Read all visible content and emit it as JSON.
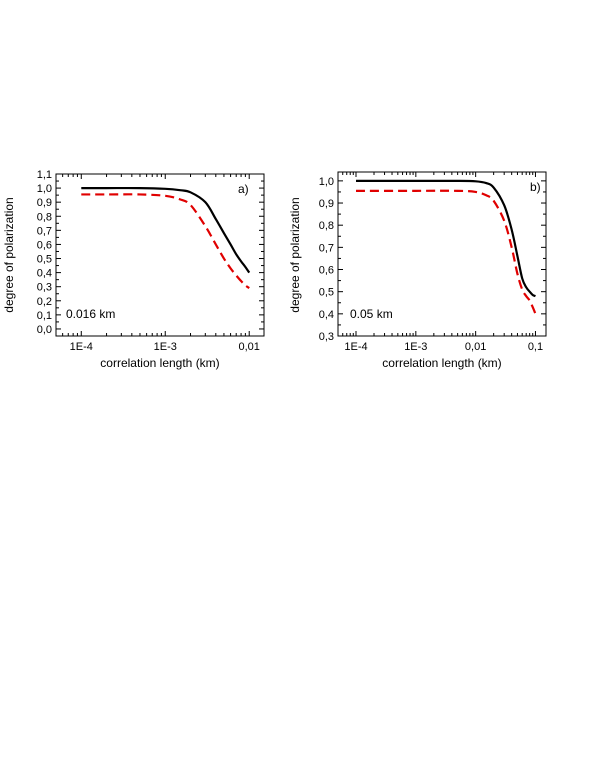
{
  "chart_data": [
    {
      "type": "line",
      "panel_label": "a)",
      "annotation": "0.016 km",
      "xlabel": "correlation length (km)",
      "ylabel": "degree of polarization",
      "xscale": "log",
      "xlim": [
        5e-05,
        0.015
      ],
      "ylim": [
        -0.05,
        1.1
      ],
      "xticks": [
        0.0001,
        0.001,
        0.01
      ],
      "xtick_labels": [
        "1E-4",
        "1E-3",
        "0,01"
      ],
      "yticks": [
        0.0,
        0.1,
        0.2,
        0.3,
        0.4,
        0.5,
        0.6,
        0.7,
        0.8,
        0.9,
        1.0,
        1.1
      ],
      "ytick_labels": [
        "0,0",
        "0,1",
        "0,2",
        "0,3",
        "0,4",
        "0,5",
        "0,6",
        "0,7",
        "0,8",
        "0,9",
        "1,0",
        "1,1"
      ],
      "x": [
        0.0001,
        0.0002,
        0.0005,
        0.001,
        0.0015,
        0.002,
        0.003,
        0.004,
        0.005,
        0.006,
        0.007,
        0.008,
        0.009,
        0.01
      ],
      "series": [
        {
          "style": "solid",
          "color": "#000000",
          "values": [
            1.0,
            1.0,
            1.0,
            0.995,
            0.985,
            0.97,
            0.9,
            0.78,
            0.68,
            0.6,
            0.53,
            0.48,
            0.44,
            0.4
          ]
        },
        {
          "style": "dashed",
          "color": "#e00000",
          "values": [
            0.955,
            0.955,
            0.955,
            0.945,
            0.92,
            0.88,
            0.73,
            0.6,
            0.5,
            0.43,
            0.38,
            0.34,
            0.31,
            0.29
          ]
        }
      ]
    },
    {
      "type": "line",
      "panel_label": "b)",
      "annotation": "0.05 km",
      "xlabel": "correlation length (km)",
      "ylabel": "degree of polarization",
      "xscale": "log",
      "xlim": [
        5e-05,
        0.15
      ],
      "ylim": [
        0.3,
        1.04
      ],
      "xticks": [
        0.0001,
        0.001,
        0.01,
        0.1
      ],
      "xtick_labels": [
        "1E-4",
        "1E-3",
        "0,01",
        "0,1"
      ],
      "yticks": [
        0.3,
        0.4,
        0.5,
        0.6,
        0.7,
        0.8,
        0.9,
        1.0
      ],
      "ytick_labels": [
        "0,3",
        "0,4",
        "0,5",
        "0,6",
        "0,7",
        "0,8",
        "0,9",
        "1,0"
      ],
      "x": [
        0.0001,
        0.001,
        0.005,
        0.01,
        0.015,
        0.02,
        0.03,
        0.04,
        0.05,
        0.06,
        0.07,
        0.08,
        0.09,
        0.1
      ],
      "series": [
        {
          "style": "solid",
          "color": "#000000",
          "values": [
            1.0,
            1.0,
            1.0,
            0.998,
            0.99,
            0.97,
            0.89,
            0.78,
            0.66,
            0.56,
            0.52,
            0.5,
            0.485,
            0.48
          ]
        },
        {
          "style": "dashed",
          "color": "#e00000",
          "values": [
            0.955,
            0.955,
            0.955,
            0.95,
            0.935,
            0.91,
            0.82,
            0.7,
            0.58,
            0.51,
            0.48,
            0.46,
            0.43,
            0.4
          ]
        }
      ]
    }
  ]
}
